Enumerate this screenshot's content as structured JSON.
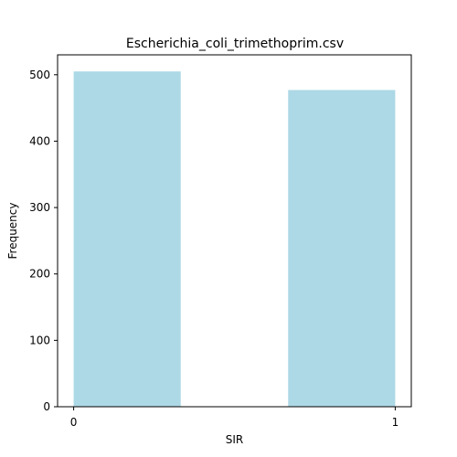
{
  "chart_data": {
    "type": "bar",
    "title": "Escherichia_coli_trimethoprim.csv",
    "xlabel": "SIR",
    "ylabel": "Frequency",
    "bars": [
      {
        "x0": 0.0,
        "x1": 0.333,
        "value": 505
      },
      {
        "x0": 0.667,
        "x1": 1.0,
        "value": 477
      }
    ],
    "xlim": [
      -0.05,
      1.05
    ],
    "ylim": [
      0,
      530
    ],
    "xticks": [
      0,
      1
    ],
    "xtick_labels": [
      "0",
      "1"
    ],
    "yticks": [
      0,
      100,
      200,
      300,
      400,
      500
    ],
    "ytick_labels": [
      "0",
      "100",
      "200",
      "300",
      "400",
      "500"
    ],
    "grid": false,
    "legend": "none",
    "bar_color": "#add8e6"
  }
}
